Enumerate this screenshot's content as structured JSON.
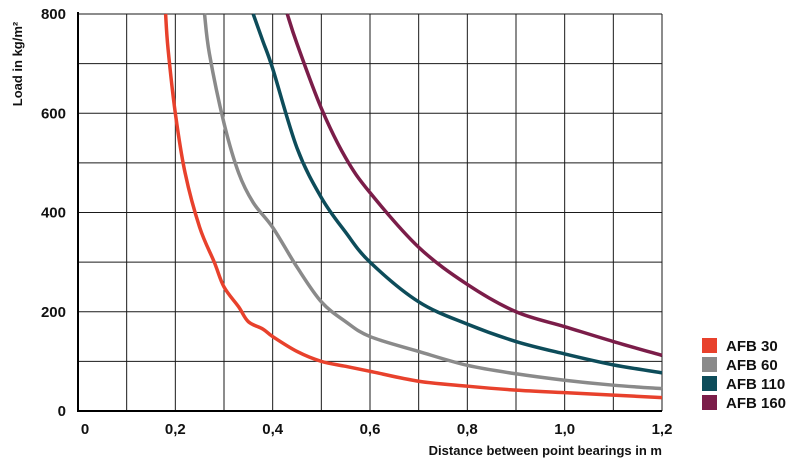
{
  "chart_data": {
    "type": "line",
    "xlabel": "Distance between point bearings in m",
    "ylabel": "Load in kg/m²",
    "xlim": [
      0,
      1.2
    ],
    "ylim": [
      0,
      800
    ],
    "x_ticks": [
      "0",
      "0,2",
      "0,4",
      "0,6",
      "0,8",
      "1,0",
      "1,2"
    ],
    "y_ticks": [
      "0",
      "200",
      "400",
      "600",
      "800"
    ],
    "grid": true,
    "legend_position": "bottom-right",
    "series": [
      {
        "name": "AFB 30",
        "color": "#e8412c",
        "x": [
          0.18,
          0.185,
          0.2,
          0.22,
          0.25,
          0.28,
          0.3,
          0.33,
          0.35,
          0.38,
          0.4,
          0.45,
          0.5,
          0.55,
          0.6,
          0.7,
          0.8,
          0.9,
          1.0,
          1.1,
          1.2
        ],
        "y": [
          800,
          730,
          600,
          480,
          370,
          300,
          250,
          210,
          180,
          165,
          150,
          120,
          100,
          90,
          80,
          60,
          50,
          42,
          37,
          32,
          27
        ]
      },
      {
        "name": "AFB 60",
        "color": "#8a8a8a",
        "x": [
          0.26,
          0.27,
          0.3,
          0.33,
          0.36,
          0.4,
          0.45,
          0.5,
          0.55,
          0.6,
          0.7,
          0.8,
          0.9,
          1.0,
          1.1,
          1.2
        ],
        "y": [
          800,
          720,
          580,
          480,
          420,
          370,
          290,
          220,
          180,
          150,
          120,
          92,
          75,
          62,
          52,
          45
        ]
      },
      {
        "name": "AFB 110",
        "color": "#0d4c5a",
        "x": [
          0.36,
          0.38,
          0.4,
          0.45,
          0.5,
          0.55,
          0.6,
          0.7,
          0.8,
          0.9,
          1.0,
          1.1,
          1.2
        ],
        "y": [
          800,
          745,
          690,
          530,
          430,
          360,
          300,
          220,
          175,
          140,
          115,
          93,
          77
        ]
      },
      {
        "name": "AFB 160",
        "color": "#7b1d49",
        "x": [
          0.43,
          0.45,
          0.5,
          0.55,
          0.6,
          0.7,
          0.8,
          0.9,
          1.0,
          1.1,
          1.2
        ],
        "y": [
          800,
          740,
          610,
          510,
          440,
          330,
          255,
          200,
          170,
          140,
          112
        ]
      }
    ]
  }
}
